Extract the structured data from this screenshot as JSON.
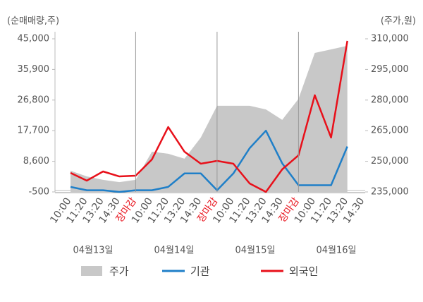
{
  "chart_data": {
    "type": "line",
    "y_label": "(순매매량,주)",
    "y2_label": "(주가,원)",
    "categories": [
      "10:00",
      "11:20",
      "13:20",
      "14:30",
      "장마감",
      "10:00",
      "11:20",
      "13:20",
      "14:30",
      "장마감",
      "10:00",
      "11:20",
      "13:20",
      "14:30",
      "장마감",
      "10:00",
      "11:20",
      "13:20",
      "14:30"
    ],
    "category_colors": [
      "#555555",
      "#555555",
      "#555555",
      "#555555",
      "#e8101a",
      "#555555",
      "#555555",
      "#555555",
      "#555555",
      "#e8101a",
      "#555555",
      "#555555",
      "#555555",
      "#555555",
      "#e8101a",
      "#555555",
      "#555555",
      "#555555",
      "#555555"
    ],
    "day_labels": [
      "04월13일",
      "04월14일",
      "04월15일",
      "04월16일"
    ],
    "series": [
      {
        "name": "주가",
        "type": "area",
        "axis": "y2",
        "color": "#c8c8c8",
        "values": [
          245400,
          242600,
          240900,
          239800,
          240900,
          254700,
          253700,
          251300,
          261600,
          277200,
          277200,
          277200,
          275400,
          270300,
          280600,
          303100,
          304800,
          306600,
          null
        ]
      },
      {
        "name": "기관",
        "color": "#1f7fc8",
        "values": [
          1000,
          0,
          0,
          -500,
          0,
          0,
          1000,
          5000,
          5000,
          0,
          5000,
          12500,
          17700,
          8000,
          1500,
          1500,
          1500,
          13000,
          null
        ]
      },
      {
        "name": "외국인",
        "color": "#e8101a",
        "values": [
          5160,
          2860,
          5580,
          4110,
          4320,
          9150,
          18790,
          11450,
          7890,
          8730,
          7890,
          2020,
          -500,
          6210,
          10400,
          28230,
          15650,
          44380,
          null
        ]
      }
    ],
    "ylim": [
      -500,
      45000
    ],
    "yticks": [
      {
        "value": 45000,
        "label": "45,000"
      },
      {
        "value": 35900,
        "label": "35,900"
      },
      {
        "value": 26800,
        "label": "26,800"
      },
      {
        "value": 17700,
        "label": "17,700"
      },
      {
        "value": 8600,
        "label": "8,600"
      },
      -500
    ],
    "y2lim": [
      235000,
      310000
    ],
    "y2ticks": [
      {
        "value": 310000,
        "label": "310,000"
      },
      {
        "value": 295000,
        "label": "295,000"
      },
      {
        "value": 280000,
        "label": "280,000"
      },
      {
        "value": 265000,
        "label": "265,000"
      },
      {
        "value": 250000,
        "label": "250,000"
      },
      {
        "value": 235000,
        "label": "235,000"
      }
    ]
  }
}
